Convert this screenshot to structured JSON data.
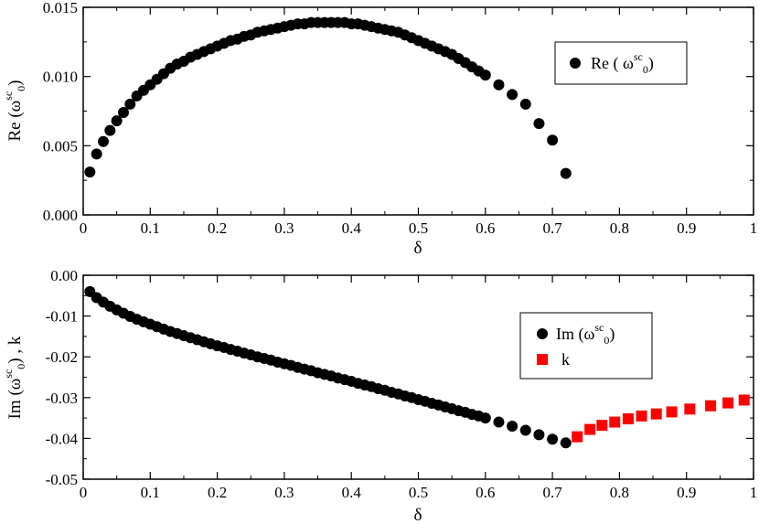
{
  "chart_data": [
    {
      "type": "scatter",
      "xlabel": "δ",
      "ylabel": {
        "pre": "Re (",
        "omega": "ω",
        "sup": "sc",
        "sub": "0",
        "post": ")"
      },
      "xlim": [
        0,
        1
      ],
      "ylim": [
        0,
        0.015
      ],
      "xticks": [
        "0",
        "0.1",
        "0.2",
        "0.3",
        "0.4",
        "0.5",
        "0.6",
        "0.7",
        "0.8",
        "0.9",
        "1"
      ],
      "yticks": [
        "0.000",
        "0.005",
        "0.010",
        "0.015"
      ],
      "grid": false,
      "legend_position": "top-right",
      "series": [
        {
          "name": {
            "pre": "Re ( ",
            "omega": "ω",
            "sup": "sc",
            "sub": "0",
            "post": ")"
          },
          "marker": "circle",
          "color": "#000000",
          "x": [
            0.01,
            0.02,
            0.03,
            0.04,
            0.05,
            0.06,
            0.07,
            0.08,
            0.09,
            0.1,
            0.11,
            0.12,
            0.13,
            0.14,
            0.15,
            0.16,
            0.17,
            0.18,
            0.19,
            0.2,
            0.21,
            0.22,
            0.23,
            0.24,
            0.25,
            0.26,
            0.27,
            0.28,
            0.29,
            0.3,
            0.31,
            0.32,
            0.33,
            0.34,
            0.35,
            0.36,
            0.37,
            0.38,
            0.39,
            0.4,
            0.41,
            0.42,
            0.43,
            0.44,
            0.45,
            0.46,
            0.47,
            0.48,
            0.49,
            0.5,
            0.51,
            0.52,
            0.53,
            0.54,
            0.55,
            0.56,
            0.57,
            0.58,
            0.59,
            0.6,
            0.62,
            0.64,
            0.66,
            0.68,
            0.7,
            0.72
          ],
          "y": [
            0.0031,
            0.0044,
            0.0053,
            0.0061,
            0.0068,
            0.0074,
            0.008,
            0.0086,
            0.009,
            0.0094,
            0.0098,
            0.0102,
            0.0106,
            0.0109,
            0.0111,
            0.0114,
            0.0116,
            0.0118,
            0.012,
            0.0122,
            0.0124,
            0.0126,
            0.0127,
            0.0129,
            0.013,
            0.0132,
            0.0133,
            0.0134,
            0.0135,
            0.0136,
            0.0137,
            0.0138,
            0.0138,
            0.0139,
            0.0139,
            0.0139,
            0.0139,
            0.0139,
            0.0139,
            0.0138,
            0.0138,
            0.0137,
            0.0136,
            0.0135,
            0.0134,
            0.0133,
            0.0132,
            0.013,
            0.0128,
            0.0126,
            0.0124,
            0.0122,
            0.012,
            0.0118,
            0.0116,
            0.0113,
            0.011,
            0.0107,
            0.0104,
            0.0101,
            0.0094,
            0.0087,
            0.008,
            0.0066,
            0.0054,
            0.003
          ]
        }
      ]
    },
    {
      "type": "scatter",
      "xlabel": "δ",
      "ylabel": {
        "pre": "Im (",
        "omega": "ω",
        "sup": "sc",
        "sub": "0",
        "post": ")  ,  k"
      },
      "xlim": [
        0,
        1
      ],
      "ylim": [
        -0.05,
        0
      ],
      "xticks": [
        "0",
        "0.1",
        "0.2",
        "0.3",
        "0.4",
        "0.5",
        "0.6",
        "0.7",
        "0.8",
        "0.9",
        "1"
      ],
      "yticks": [
        "0.00",
        "-0.01",
        "-0.02",
        "-0.03",
        "-0.04",
        "-0.05"
      ],
      "grid": false,
      "legend_position": "right",
      "series": [
        {
          "name": {
            "pre": "Im (",
            "omega": "ω",
            "sup": "sc",
            "sub": "0",
            "post": ")"
          },
          "marker": "circle",
          "color": "#000000",
          "x": [
            0.01,
            0.02,
            0.03,
            0.04,
            0.05,
            0.06,
            0.07,
            0.08,
            0.09,
            0.1,
            0.11,
            0.12,
            0.13,
            0.14,
            0.15,
            0.16,
            0.17,
            0.18,
            0.19,
            0.2,
            0.21,
            0.22,
            0.23,
            0.24,
            0.25,
            0.26,
            0.27,
            0.28,
            0.29,
            0.3,
            0.31,
            0.32,
            0.33,
            0.34,
            0.35,
            0.36,
            0.37,
            0.38,
            0.39,
            0.4,
            0.41,
            0.42,
            0.43,
            0.44,
            0.45,
            0.46,
            0.47,
            0.48,
            0.49,
            0.5,
            0.51,
            0.52,
            0.53,
            0.54,
            0.55,
            0.56,
            0.57,
            0.58,
            0.59,
            0.6,
            0.62,
            0.64,
            0.66,
            0.68,
            0.7,
            0.72
          ],
          "y": [
            -0.004,
            -0.0055,
            -0.0066,
            -0.0076,
            -0.0085,
            -0.0093,
            -0.0101,
            -0.0108,
            -0.0114,
            -0.012,
            -0.0126,
            -0.0132,
            -0.0138,
            -0.0143,
            -0.0148,
            -0.0153,
            -0.0158,
            -0.0163,
            -0.0168,
            -0.0173,
            -0.0177,
            -0.0182,
            -0.0186,
            -0.0191,
            -0.0195,
            -0.02,
            -0.0204,
            -0.0208,
            -0.0213,
            -0.0217,
            -0.0221,
            -0.0226,
            -0.023,
            -0.0234,
            -0.0239,
            -0.0243,
            -0.0247,
            -0.0252,
            -0.0256,
            -0.026,
            -0.0265,
            -0.0269,
            -0.0273,
            -0.0278,
            -0.0282,
            -0.0287,
            -0.0291,
            -0.0296,
            -0.03,
            -0.0305,
            -0.0309,
            -0.0314,
            -0.0318,
            -0.0323,
            -0.0327,
            -0.0332,
            -0.0336,
            -0.0341,
            -0.0345,
            -0.035,
            -0.036,
            -0.037,
            -0.038,
            -0.0391,
            -0.0402,
            -0.0411
          ]
        },
        {
          "name": {
            "pre": "k"
          },
          "marker": "square",
          "color": "#ff0000",
          "x": [
            0.737,
            0.756,
            0.774,
            0.793,
            0.813,
            0.833,
            0.855,
            0.878,
            0.905,
            0.936,
            0.962,
            0.986
          ],
          "y": [
            -0.0396,
            -0.0378,
            -0.0368,
            -0.036,
            -0.0352,
            -0.0345,
            -0.034,
            -0.0335,
            -0.0328,
            -0.032,
            -0.0313,
            -0.0306
          ]
        }
      ]
    }
  ]
}
